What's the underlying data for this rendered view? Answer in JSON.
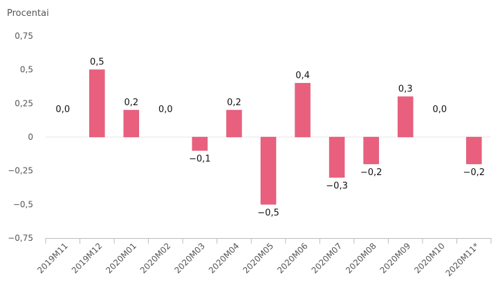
{
  "chart_data": {
    "type": "bar",
    "ylabel": "Procentai",
    "xlabel": "",
    "title": "",
    "categories": [
      "2019M11",
      "2019M12",
      "2020M01",
      "2020M02",
      "2020M03",
      "2020M04",
      "2020M05",
      "2020M06",
      "2020M07",
      "2020M08",
      "2020M09",
      "2020M10",
      "2020M11*"
    ],
    "values": [
      0.0,
      0.5,
      0.2,
      0.0,
      -0.1,
      0.2,
      -0.5,
      0.4,
      -0.3,
      -0.2,
      0.3,
      0.0,
      -0.2
    ],
    "data_labels": [
      "0,0",
      "0,5",
      "0,2",
      "0,0",
      "−0,1",
      "0,2",
      "−0,5",
      "0,4",
      "−0,3",
      "−0,2",
      "0,3",
      "0,0",
      "−0,2"
    ],
    "ylim": [
      -0.75,
      0.75
    ],
    "yticks": [
      0.75,
      0.5,
      0.25,
      0,
      -0.25,
      -0.5,
      -0.75
    ],
    "ytick_labels": [
      "0,75",
      "0,5",
      "0,25",
      "0",
      "−0,25",
      "−0,5",
      "−0,75"
    ],
    "grid": false,
    "bar_color": "#e8607e",
    "bar_edge_color": "#d9506e"
  }
}
